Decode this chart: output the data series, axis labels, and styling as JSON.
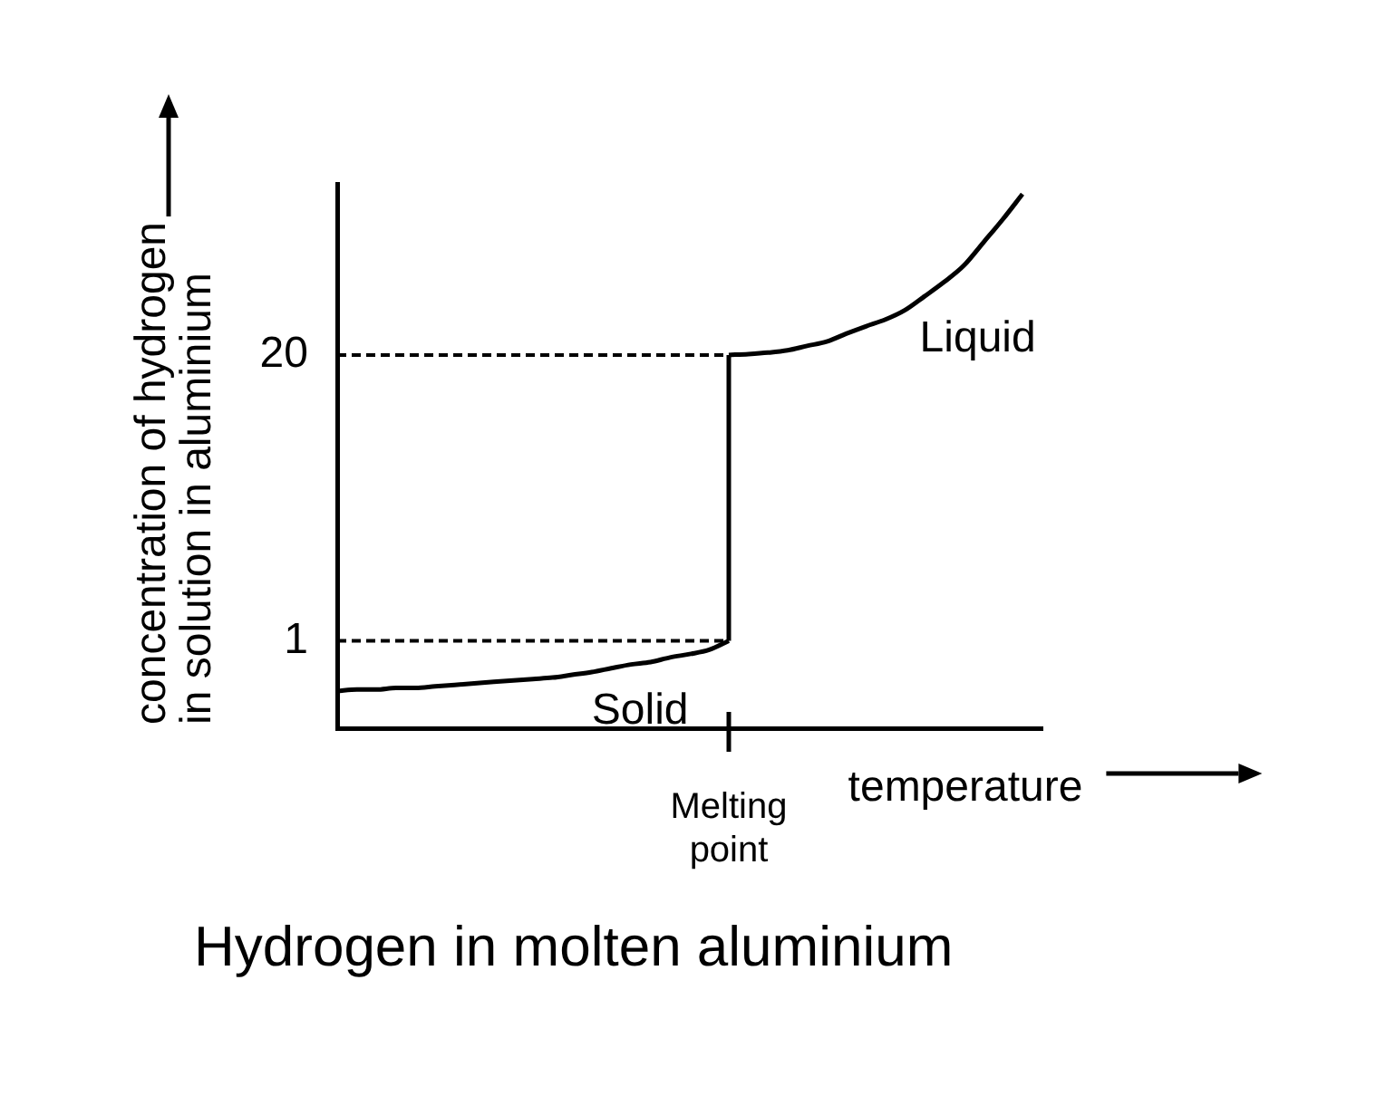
{
  "chart_data": {
    "type": "line",
    "title": "Hydrogen in molten aluminium",
    "xlabel": "temperature",
    "ylabel": "concentration of hydrogen in solution in aluminium",
    "categories": [
      null,
      null,
      null,
      null,
      null,
      null,
      null,
      null,
      null,
      null,
      null,
      null,
      null,
      null,
      null,
      null,
      null,
      null,
      null,
      null,
      "Melting point",
      null,
      null,
      null,
      null,
      null,
      null,
      null,
      null,
      null,
      null,
      null,
      null,
      null,
      null,
      null,
      null
    ],
    "series": [
      {
        "name": "Solid",
        "color": "#000000",
        "values": [
          0.59,
          0.6,
          0.6,
          0.61,
          0.61,
          0.62,
          0.63,
          0.64,
          0.65,
          0.66,
          0.67,
          0.68,
          0.7,
          0.72,
          0.75,
          0.78,
          0.8,
          0.84,
          0.87,
          0.91,
          1,
          null,
          null,
          null,
          null,
          null,
          null,
          null,
          null,
          null,
          null,
          null,
          null,
          null,
          null,
          null,
          null
        ]
      },
      {
        "name": "Liquid",
        "color": "#000000",
        "values": [
          null,
          null,
          null,
          null,
          null,
          null,
          null,
          null,
          null,
          null,
          null,
          null,
          null,
          null,
          null,
          null,
          null,
          null,
          null,
          null,
          20,
          20.2,
          20.5,
          21,
          22,
          23,
          25,
          27,
          29,
          32,
          37,
          43,
          51,
          65,
          83,
          108,
          null
        ]
      },
      {
        "type": "line",
        "color": "#000000",
        "x": [
          "Melting point",
          "Melting point"
        ],
        "values": [
          1,
          20
        ]
      }
    ],
    "ylim": [
      0.4,
      120
    ],
    "yticks": [
      1,
      20
    ],
    "log": true,
    "marker": "none",
    "ref_lines": [
      {
        "axis": "y",
        "value": 1,
        "line_style": "dashed",
        "color": "#000000"
      },
      {
        "axis": "y",
        "value": 20,
        "line_style": "dashed",
        "color": "#000000"
      }
    ]
  }
}
